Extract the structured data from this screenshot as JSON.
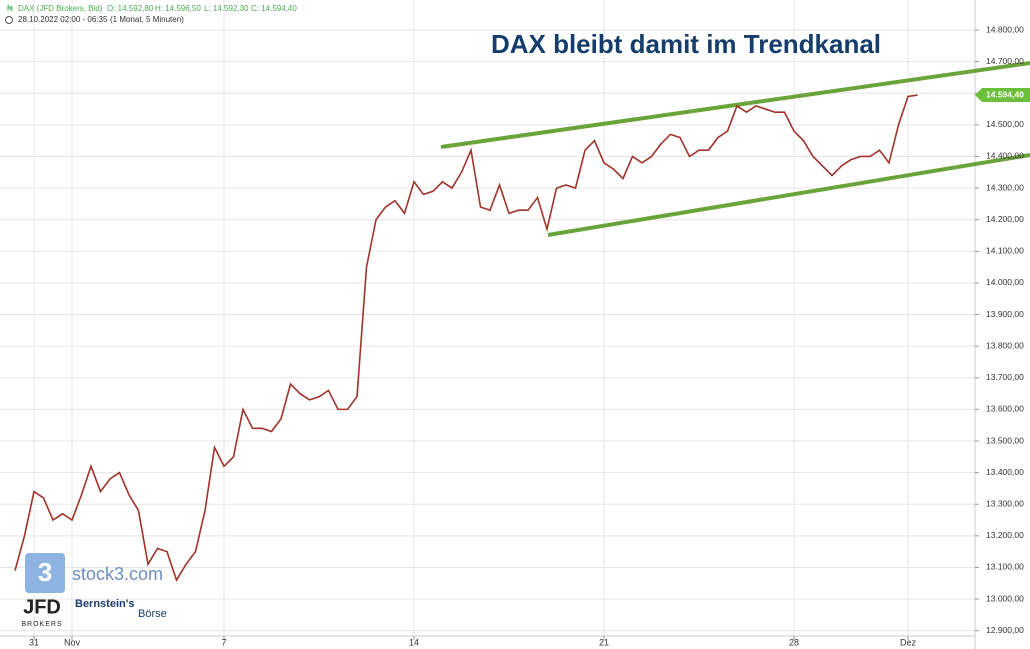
{
  "header": {
    "instrument": "DAX (JFD Brokers, Bid)",
    "open": "O: 14.592,80",
    "high": "H: 14.596,50",
    "low": "L: 14.592,30",
    "close": "C: 14.594,40",
    "range": "28.10.2022 02:00 - 06:35",
    "period": "(1 Monat, 5 Minuten)"
  },
  "logos": {
    "stock3": "stock3.com",
    "jfd": "JFD",
    "jfd_sub": "BROKERS",
    "bernstein": "Bernstein's",
    "boerse": "Börse"
  },
  "chart_data": {
    "type": "line",
    "title": "DAX bleibt damit im Trendkanal",
    "categories": [
      null,
      null,
      "31",
      null,
      null,
      null,
      "Nov",
      null,
      null,
      null,
      null,
      null,
      null,
      null,
      null,
      null,
      null,
      null,
      null,
      null,
      null,
      null,
      "7",
      null,
      null,
      null,
      null,
      null,
      null,
      null,
      null,
      null,
      null,
      null,
      null,
      null,
      null,
      null,
      null,
      null,
      null,
      null,
      "14",
      null,
      null,
      null,
      null,
      null,
      null,
      null,
      null,
      null,
      null,
      null,
      null,
      null,
      null,
      null,
      null,
      null,
      null,
      null,
      "21",
      null,
      null,
      null,
      null,
      null,
      null,
      null,
      null,
      null,
      null,
      null,
      null,
      null,
      null,
      null,
      null,
      null,
      null,
      null,
      "28",
      null,
      null,
      null,
      null,
      null,
      null,
      null,
      null,
      null,
      null,
      null,
      "Dez",
      null
    ],
    "series": [
      {
        "name": "DAX",
        "color": "#a0332a",
        "values": [
          13090,
          13200,
          13340,
          13320,
          13250,
          13270,
          13250,
          13330,
          13420,
          13340,
          13380,
          13400,
          13330,
          13280,
          13110,
          13160,
          13150,
          13060,
          13110,
          13150,
          13280,
          13480,
          13420,
          13450,
          13600,
          13540,
          13540,
          13530,
          13570,
          13680,
          13650,
          13630,
          13640,
          13660,
          13600,
          13600,
          13640,
          14050,
          14200,
          14240,
          14260,
          14220,
          14320,
          14280,
          14290,
          14320,
          14300,
          14350,
          14420,
          14240,
          14230,
          14310,
          14220,
          14230,
          14230,
          14270,
          14170,
          14300,
          14310,
          14300,
          14420,
          14450,
          14380,
          14360,
          14330,
          14400,
          14380,
          14400,
          14440,
          14470,
          14460,
          14400,
          14420,
          14420,
          14460,
          14480,
          14560,
          14540,
          14560,
          14550,
          14540,
          14540,
          14480,
          14450,
          14400,
          14370,
          14340,
          14370,
          14390,
          14400,
          14400,
          14420,
          14380,
          14500,
          14590,
          14594.4
        ]
      }
    ],
    "last_price": {
      "value": 14594.4,
      "label": "14.594,40"
    },
    "ylim": [
      12880,
      14895
    ],
    "yticks": [
      {
        "value": 12900,
        "label": "12.900,00"
      },
      {
        "value": 13000,
        "label": "13.000,00"
      },
      {
        "value": 13100,
        "label": "13.100,00"
      },
      {
        "value": 13200,
        "label": "13.200,00"
      },
      {
        "value": 13300,
        "label": "13.300,00"
      },
      {
        "value": 13400,
        "label": "13.400,00"
      },
      {
        "value": 13500,
        "label": "13.500,00"
      },
      {
        "value": 13600,
        "label": "13.600,00"
      },
      {
        "value": 13700,
        "label": "13.700,00"
      },
      {
        "value": 13800,
        "label": "13.800,00"
      },
      {
        "value": 13900,
        "label": "13.900,00"
      },
      {
        "value": 14000,
        "label": "14.000,00"
      },
      {
        "value": 14100,
        "label": "14.100,00"
      },
      {
        "value": 14200,
        "label": "14.200,00"
      },
      {
        "value": 14300,
        "label": "14.300,00"
      },
      {
        "value": 14400,
        "label": "14.400,00"
      },
      {
        "value": 14500,
        "label": "14.500,00"
      },
      {
        "value": 14600,
        "label": "14.600,00"
      },
      {
        "value": 14700,
        "label": "14.700,00"
      },
      {
        "value": 14800,
        "label": "14.800,00"
      }
    ],
    "grid": true
  }
}
